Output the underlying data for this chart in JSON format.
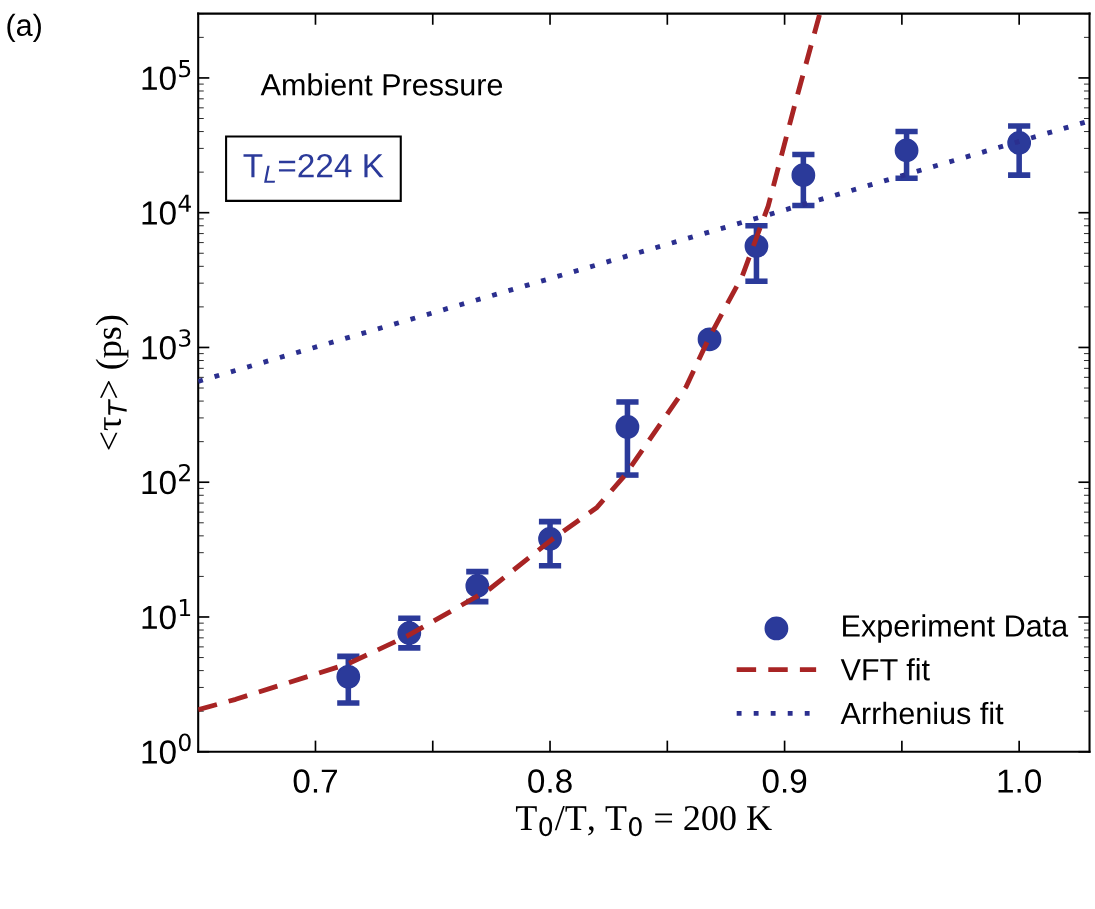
{
  "chart_data": {
    "type": "scatter",
    "xlabel": "T$_{0}$/T, T$_{0}$ = 200 K",
    "ylabel": "<τ$_{T}$> (ps)",
    "annotations": [
      "(a)",
      "Ambient Pressure",
      "T$_{L}$=224 K"
    ],
    "log": "y",
    "xlim": [
      0.65,
      1.03
    ],
    "ylim": [
      1,
      300000
    ],
    "xticks": [
      0.7,
      {
        "value": 0.75,
        "label": null
      },
      0.8,
      {
        "value": 0.85,
        "label": null
      },
      0.9,
      {
        "value": 0.95,
        "label": null
      },
      {
        "value": 1.0,
        "label": "1.0"
      }
    ],
    "yticks": [
      {
        "value": 1,
        "label": "10$^{0}$"
      },
      {
        "value": 10,
        "label": "10$^{1}$"
      },
      {
        "value": 100,
        "label": "10$^{2}$"
      },
      {
        "value": 1000,
        "label": "10$^{3}$"
      },
      {
        "value": 10000,
        "label": "10$^{4}$"
      },
      {
        "value": 100000,
        "label": "10$^{5}$"
      }
    ],
    "grid": false,
    "legend": "bottom right",
    "series": [
      {
        "name": "Experiment Data",
        "marker": "circle",
        "color": "#2b3a9a",
        "x": [
          0.714,
          0.74,
          0.769,
          0.8,
          0.833,
          0.868,
          0.888,
          0.908,
          0.952,
          1.0
        ],
        "values": [
          3.6,
          7.6,
          17,
          38,
          257,
          1150,
          5650,
          19000,
          29000,
          33000
        ],
        "errors": [
          [
            2.3,
            5.1
          ],
          [
            5.9,
            9.8
          ],
          [
            13,
            21.7
          ],
          [
            24,
            51
          ],
          [
            113,
            394
          ],
          null,
          [
            3100,
            8000
          ],
          [
            11300,
            27000
          ],
          [
            18000,
            40000
          ],
          [
            19000,
            44000
          ]
        ]
      },
      {
        "name": "VFT fit",
        "type": "line",
        "line_style": "dashed",
        "color": "#a82424",
        "x": [
          0.65,
          0.666,
          0.714,
          0.739,
          0.774,
          0.802,
          0.82,
          0.832,
          0.858,
          0.868,
          0.882,
          0.893,
          0.904,
          0.915
        ],
        "values": [
          2.05,
          2.45,
          4.5,
          7.2,
          16,
          39,
          65,
          113,
          510,
          1200,
          3400,
          11200,
          60000,
          300000
        ]
      },
      {
        "name": "Arrhenius fit",
        "type": "line",
        "line_style": "dotted",
        "color": "#2b2f8f",
        "x": [
          0.65,
          1.03
        ],
        "values": [
          560,
          48000
        ]
      }
    ]
  }
}
